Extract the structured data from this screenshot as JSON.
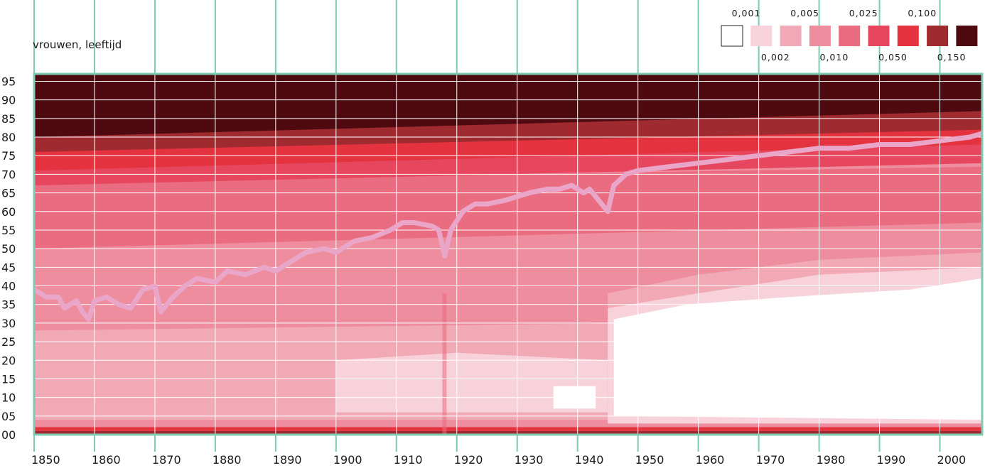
{
  "chart_data": {
    "type": "heatmap",
    "title": "",
    "ylabel": "vrouwen, leeftijd",
    "xlabel": "",
    "x_range": [
      1850,
      2007
    ],
    "y_range": [
      0,
      97
    ],
    "x_ticks": [
      "1850",
      "1860",
      "1870",
      "1880",
      "1890",
      "1900",
      "1910",
      "1920",
      "1930",
      "1940",
      "1950",
      "1960",
      "1970",
      "1980",
      "1990",
      "2000"
    ],
    "y_ticks": [
      "00",
      "05",
      "10",
      "15",
      "20",
      "25",
      "30",
      "35",
      "40",
      "45",
      "50",
      "55",
      "60",
      "65",
      "70",
      "75",
      "80",
      "85",
      "90",
      "95"
    ],
    "legend": {
      "placement": "top-right",
      "thresholds": [
        "0,001",
        "0,002",
        "0,005",
        "0,010",
        "0,025",
        "0,050",
        "0,100",
        "0,150"
      ],
      "colors": [
        "#ffffff",
        "#f8d2db",
        "#f2a9b6",
        "#ee8d9e",
        "#ea6c80",
        "#e6475f",
        "#e5323f",
        "#9f2a30",
        "#4f0a10"
      ]
    },
    "bands_note_colors": {
      "grid": "#ffffff",
      "frame": "#7ccbb2",
      "line": "#e9a6c8"
    },
    "life_expectancy_line": {
      "name": "",
      "x": [
        1850,
        1852,
        1854,
        1855,
        1857,
        1858,
        1859,
        1860,
        1862,
        1864,
        1866,
        1868,
        1870,
        1871,
        1873,
        1875,
        1877,
        1880,
        1882,
        1885,
        1888,
        1890,
        1892,
        1895,
        1898,
        1900,
        1903,
        1906,
        1909,
        1911,
        1913,
        1916,
        1917,
        1918,
        1919,
        1921,
        1923,
        1925,
        1928,
        1930,
        1932,
        1935,
        1937,
        1939,
        1941,
        1942,
        1944,
        1945,
        1946,
        1948,
        1950,
        1955,
        1960,
        1965,
        1970,
        1975,
        1980,
        1985,
        1990,
        1995,
        2000,
        2005,
        2007
      ],
      "y": [
        39,
        37,
        37,
        34,
        36,
        33,
        31,
        36,
        37,
        35,
        34,
        39,
        40,
        33,
        37,
        40,
        42,
        41,
        44,
        43,
        45,
        44,
        46,
        49,
        50,
        49,
        52,
        53,
        55,
        57,
        57,
        56,
        55,
        48,
        55,
        60,
        62,
        62,
        63,
        64,
        65,
        66,
        66,
        67,
        65,
        66,
        62,
        60,
        67,
        70,
        71,
        72,
        73,
        74,
        75,
        76,
        77,
        77,
        78,
        78,
        79,
        80,
        81
      ]
    }
  }
}
